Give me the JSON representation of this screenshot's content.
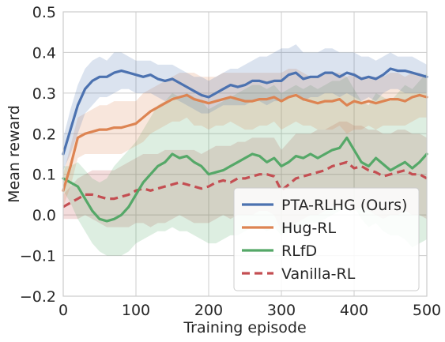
{
  "chart_data": {
    "type": "line",
    "title": "",
    "xlabel": "Training episode",
    "ylabel": "Mean reward",
    "xlim": [
      0,
      500
    ],
    "ylim": [
      -0.2,
      0.5
    ],
    "xticks": [
      0,
      100,
      200,
      300,
      400,
      500
    ],
    "xtick_labels": [
      "0",
      "100",
      "200",
      "300",
      "400",
      "500"
    ],
    "yticks": [
      -0.2,
      -0.1,
      0.0,
      0.1,
      0.2,
      0.3,
      0.4,
      0.5
    ],
    "ytick_labels": [
      "−0.2",
      "−0.1",
      "0.0",
      "0.1",
      "0.2",
      "0.3",
      "0.4",
      "0.5"
    ],
    "grid": true,
    "legend": "lower-right",
    "x": [
      0,
      10,
      20,
      30,
      40,
      50,
      60,
      70,
      80,
      90,
      100,
      110,
      120,
      130,
      140,
      150,
      160,
      170,
      180,
      190,
      200,
      210,
      220,
      230,
      240,
      250,
      260,
      270,
      280,
      290,
      300,
      310,
      320,
      330,
      340,
      350,
      360,
      370,
      380,
      390,
      400,
      410,
      420,
      430,
      440,
      450,
      460,
      470,
      480,
      490,
      500
    ],
    "series": [
      {
        "name": "PTA-RLHG (Ours)",
        "color": "#4c72b0",
        "dash": "solid",
        "values": [
          0.15,
          0.21,
          0.27,
          0.31,
          0.33,
          0.34,
          0.34,
          0.35,
          0.355,
          0.35,
          0.345,
          0.34,
          0.345,
          0.335,
          0.33,
          0.335,
          0.325,
          0.315,
          0.305,
          0.295,
          0.29,
          0.3,
          0.31,
          0.32,
          0.315,
          0.32,
          0.33,
          0.33,
          0.325,
          0.33,
          0.33,
          0.345,
          0.35,
          0.335,
          0.34,
          0.34,
          0.35,
          0.35,
          0.34,
          0.35,
          0.345,
          0.335,
          0.34,
          0.335,
          0.345,
          0.36,
          0.355,
          0.355,
          0.35,
          0.345,
          0.34
        ],
        "lower": [
          0.11,
          0.15,
          0.2,
          0.25,
          0.27,
          0.29,
          0.29,
          0.3,
          0.31,
          0.31,
          0.3,
          0.3,
          0.3,
          0.29,
          0.28,
          0.29,
          0.28,
          0.27,
          0.26,
          0.25,
          0.25,
          0.26,
          0.27,
          0.27,
          0.27,
          0.27,
          0.28,
          0.28,
          0.27,
          0.28,
          0.28,
          0.29,
          0.3,
          0.28,
          0.29,
          0.29,
          0.3,
          0.3,
          0.29,
          0.3,
          0.29,
          0.28,
          0.29,
          0.28,
          0.3,
          0.31,
          0.31,
          0.3,
          0.3,
          0.3,
          0.3
        ],
        "upper": [
          0.19,
          0.26,
          0.32,
          0.36,
          0.38,
          0.39,
          0.38,
          0.4,
          0.4,
          0.39,
          0.38,
          0.38,
          0.38,
          0.37,
          0.37,
          0.37,
          0.36,
          0.35,
          0.34,
          0.34,
          0.33,
          0.34,
          0.35,
          0.36,
          0.36,
          0.37,
          0.38,
          0.39,
          0.39,
          0.4,
          0.41,
          0.41,
          0.42,
          0.4,
          0.4,
          0.4,
          0.41,
          0.41,
          0.4,
          0.4,
          0.4,
          0.39,
          0.39,
          0.38,
          0.39,
          0.4,
          0.39,
          0.39,
          0.39,
          0.38,
          0.37
        ]
      },
      {
        "name": "Hug-RL",
        "color": "#dd8452",
        "dash": "solid",
        "values": [
          0.06,
          0.12,
          0.19,
          0.2,
          0.205,
          0.21,
          0.21,
          0.215,
          0.215,
          0.22,
          0.225,
          0.24,
          0.255,
          0.265,
          0.275,
          0.285,
          0.29,
          0.295,
          0.285,
          0.28,
          0.275,
          0.28,
          0.285,
          0.29,
          0.285,
          0.28,
          0.28,
          0.285,
          0.285,
          0.29,
          0.28,
          0.29,
          0.295,
          0.285,
          0.28,
          0.275,
          0.28,
          0.28,
          0.285,
          0.27,
          0.28,
          0.275,
          0.28,
          0.275,
          0.28,
          0.285,
          0.285,
          0.28,
          0.29,
          0.295,
          0.29
        ],
        "lower": [
          0.02,
          0.07,
          0.14,
          0.15,
          0.15,
          0.15,
          0.15,
          0.15,
          0.15,
          0.16,
          0.17,
          0.18,
          0.2,
          0.21,
          0.22,
          0.23,
          0.23,
          0.24,
          0.22,
          0.22,
          0.21,
          0.22,
          0.22,
          0.23,
          0.22,
          0.21,
          0.21,
          0.22,
          0.22,
          0.23,
          0.21,
          0.22,
          0.23,
          0.22,
          0.22,
          0.21,
          0.21,
          0.21,
          0.22,
          0.2,
          0.21,
          0.21,
          0.22,
          0.21,
          0.22,
          0.22,
          0.22,
          0.22,
          0.23,
          0.24,
          0.24
        ],
        "upper": [
          0.1,
          0.17,
          0.24,
          0.25,
          0.26,
          0.27,
          0.27,
          0.28,
          0.28,
          0.28,
          0.28,
          0.3,
          0.31,
          0.32,
          0.33,
          0.34,
          0.35,
          0.35,
          0.35,
          0.34,
          0.34,
          0.34,
          0.35,
          0.35,
          0.35,
          0.35,
          0.35,
          0.35,
          0.35,
          0.35,
          0.35,
          0.36,
          0.36,
          0.35,
          0.34,
          0.34,
          0.35,
          0.35,
          0.35,
          0.34,
          0.35,
          0.34,
          0.34,
          0.34,
          0.34,
          0.35,
          0.35,
          0.34,
          0.35,
          0.35,
          0.34
        ]
      },
      {
        "name": "RLfD",
        "color": "#55a868",
        "dash": "solid",
        "values": [
          0.09,
          0.08,
          0.07,
          0.04,
          0.01,
          -0.01,
          -0.015,
          -0.01,
          0.0,
          0.02,
          0.05,
          0.08,
          0.1,
          0.12,
          0.13,
          0.15,
          0.14,
          0.145,
          0.13,
          0.12,
          0.1,
          0.105,
          0.11,
          0.12,
          0.13,
          0.14,
          0.15,
          0.145,
          0.13,
          0.14,
          0.12,
          0.13,
          0.145,
          0.14,
          0.15,
          0.14,
          0.15,
          0.16,
          0.165,
          0.19,
          0.16,
          0.13,
          0.12,
          0.14,
          0.125,
          0.11,
          0.12,
          0.13,
          0.115,
          0.13,
          0.15
        ],
        "lower": [
          0.06,
          0.03,
          -0.01,
          -0.04,
          -0.07,
          -0.09,
          -0.1,
          -0.1,
          -0.1,
          -0.09,
          -0.07,
          -0.06,
          -0.05,
          -0.04,
          -0.04,
          -0.03,
          -0.04,
          -0.04,
          -0.05,
          -0.06,
          -0.07,
          -0.07,
          -0.06,
          -0.05,
          -0.05,
          -0.04,
          -0.03,
          -0.03,
          -0.04,
          -0.03,
          -0.05,
          -0.04,
          -0.03,
          -0.03,
          -0.02,
          -0.02,
          -0.01,
          0.0,
          0.01,
          0.04,
          0.02,
          -0.01,
          -0.03,
          -0.02,
          -0.04,
          -0.05,
          -0.05,
          -0.06,
          -0.08,
          -0.07,
          -0.06
        ],
        "upper": [
          0.12,
          0.12,
          0.13,
          0.11,
          0.09,
          0.08,
          0.09,
          0.12,
          0.14,
          0.16,
          0.18,
          0.21,
          0.24,
          0.27,
          0.28,
          0.3,
          0.29,
          0.3,
          0.29,
          0.28,
          0.26,
          0.27,
          0.28,
          0.29,
          0.3,
          0.31,
          0.32,
          0.32,
          0.31,
          0.32,
          0.3,
          0.31,
          0.32,
          0.31,
          0.32,
          0.31,
          0.32,
          0.33,
          0.33,
          0.34,
          0.31,
          0.28,
          0.27,
          0.3,
          0.29,
          0.28,
          0.3,
          0.32,
          0.31,
          0.33,
          0.35
        ]
      },
      {
        "name": "Vanilla-RL",
        "color": "#c44e52",
        "dash": "dashed",
        "values": [
          0.02,
          0.03,
          0.04,
          0.05,
          0.05,
          0.045,
          0.04,
          0.04,
          0.045,
          0.05,
          0.06,
          0.065,
          0.06,
          0.065,
          0.07,
          0.075,
          0.08,
          0.075,
          0.07,
          0.065,
          0.07,
          0.08,
          0.085,
          0.08,
          0.09,
          0.09,
          0.095,
          0.1,
          0.1,
          0.095,
          0.06,
          0.075,
          0.09,
          0.095,
          0.1,
          0.105,
          0.11,
          0.12,
          0.125,
          0.13,
          0.115,
          0.12,
          0.11,
          0.105,
          0.095,
          0.1,
          0.105,
          0.11,
          0.1,
          0.1,
          0.09
        ],
        "lower": [
          -0.01,
          -0.01,
          -0.01,
          0.0,
          -0.01,
          -0.02,
          -0.03,
          -0.03,
          -0.03,
          -0.03,
          -0.02,
          -0.02,
          -0.03,
          -0.02,
          -0.02,
          -0.01,
          0.0,
          -0.01,
          -0.02,
          -0.02,
          -0.02,
          -0.01,
          0.0,
          -0.01,
          0.0,
          0.0,
          0.0,
          0.01,
          0.01,
          0.0,
          -0.04,
          -0.03,
          -0.02,
          -0.01,
          0.0,
          0.0,
          0.01,
          0.02,
          0.02,
          0.03,
          0.01,
          0.02,
          0.01,
          0.0,
          -0.01,
          0.0,
          0.0,
          0.01,
          0.0,
          0.0,
          -0.01
        ],
        "upper": [
          0.05,
          0.07,
          0.09,
          0.1,
          0.11,
          0.11,
          0.11,
          0.11,
          0.12,
          0.13,
          0.14,
          0.15,
          0.15,
          0.15,
          0.16,
          0.16,
          0.16,
          0.16,
          0.16,
          0.15,
          0.16,
          0.17,
          0.17,
          0.17,
          0.18,
          0.18,
          0.19,
          0.19,
          0.19,
          0.19,
          0.16,
          0.18,
          0.2,
          0.2,
          0.2,
          0.21,
          0.21,
          0.22,
          0.23,
          0.23,
          0.22,
          0.22,
          0.21,
          0.21,
          0.2,
          0.2,
          0.21,
          0.21,
          0.2,
          0.2,
          0.19
        ]
      }
    ]
  }
}
